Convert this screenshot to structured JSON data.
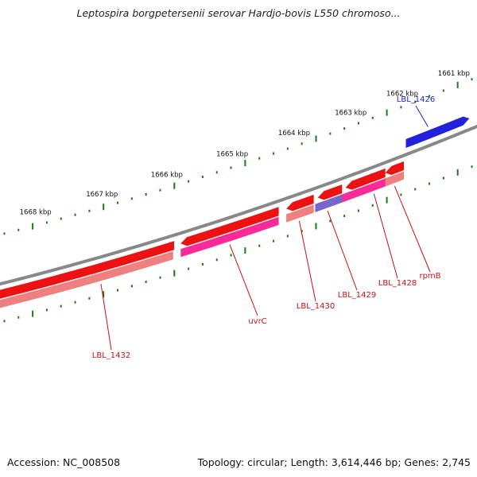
{
  "title": "Leptospira borgpetersenii serovar Hardjo-bovis L550 chromoso...",
  "footer": {
    "accession": "Accession: NC_008508",
    "summary": "Topology: circular; Length: 3,614,446 bp; Genes: 2,745"
  },
  "colors": {
    "backbone": "#888888",
    "tick": "#1a7a1a",
    "cds_forward": "#2222dd",
    "cds_reverse": "#ee1111",
    "gene_reverse": "#ff2a99",
    "gene_partial": "#7766cc",
    "rna_light": "#f08080",
    "label_forward": "#2222cc",
    "label_reverse": "#cc1111"
  },
  "scale_labels": [
    "1661 kbp",
    "1662 kbp",
    "1663 kbp",
    "1664 kbp",
    "1665 kbp",
    "1666 kbp",
    "1667 kbp",
    "1668 kbp"
  ],
  "genes": [
    {
      "id": "LBL_1426",
      "label": "LBL_1426",
      "strand": "forward"
    },
    {
      "id": "LBL_1428",
      "label": "LBL_1428",
      "strand": "reverse"
    },
    {
      "id": "LBL_1429",
      "label": "LBL_1429",
      "strand": "reverse"
    },
    {
      "id": "LBL_1430",
      "label": "LBL_1430",
      "strand": "reverse"
    },
    {
      "id": "LBL_1432",
      "label": "LBL_1432",
      "strand": "reverse"
    },
    {
      "id": "uvrC",
      "label": "uvrC",
      "strand": "reverse"
    },
    {
      "id": "rpmB",
      "label": "rpmB",
      "strand": "reverse"
    }
  ]
}
